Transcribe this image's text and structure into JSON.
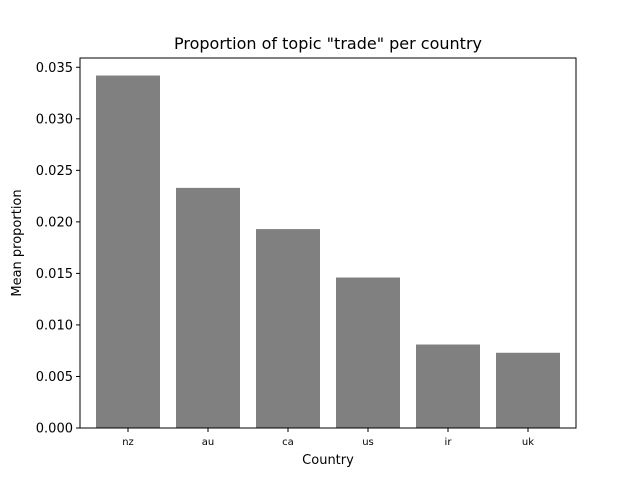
{
  "chart_data": {
    "type": "bar",
    "title": "Proportion of topic \"trade\" per country",
    "xlabel": "Country",
    "ylabel": "Mean proportion",
    "categories": [
      "nz",
      "au",
      "ca",
      "us",
      "ir",
      "uk"
    ],
    "values": [
      0.0342,
      0.0233,
      0.0193,
      0.0146,
      0.0081,
      0.0073
    ],
    "ylim": [
      0,
      0.0359
    ],
    "yticks": [
      "0.000",
      "0.005",
      "0.010",
      "0.015",
      "0.020",
      "0.025",
      "0.030",
      "0.035"
    ],
    "bar_color": "#808080",
    "grid": false
  }
}
